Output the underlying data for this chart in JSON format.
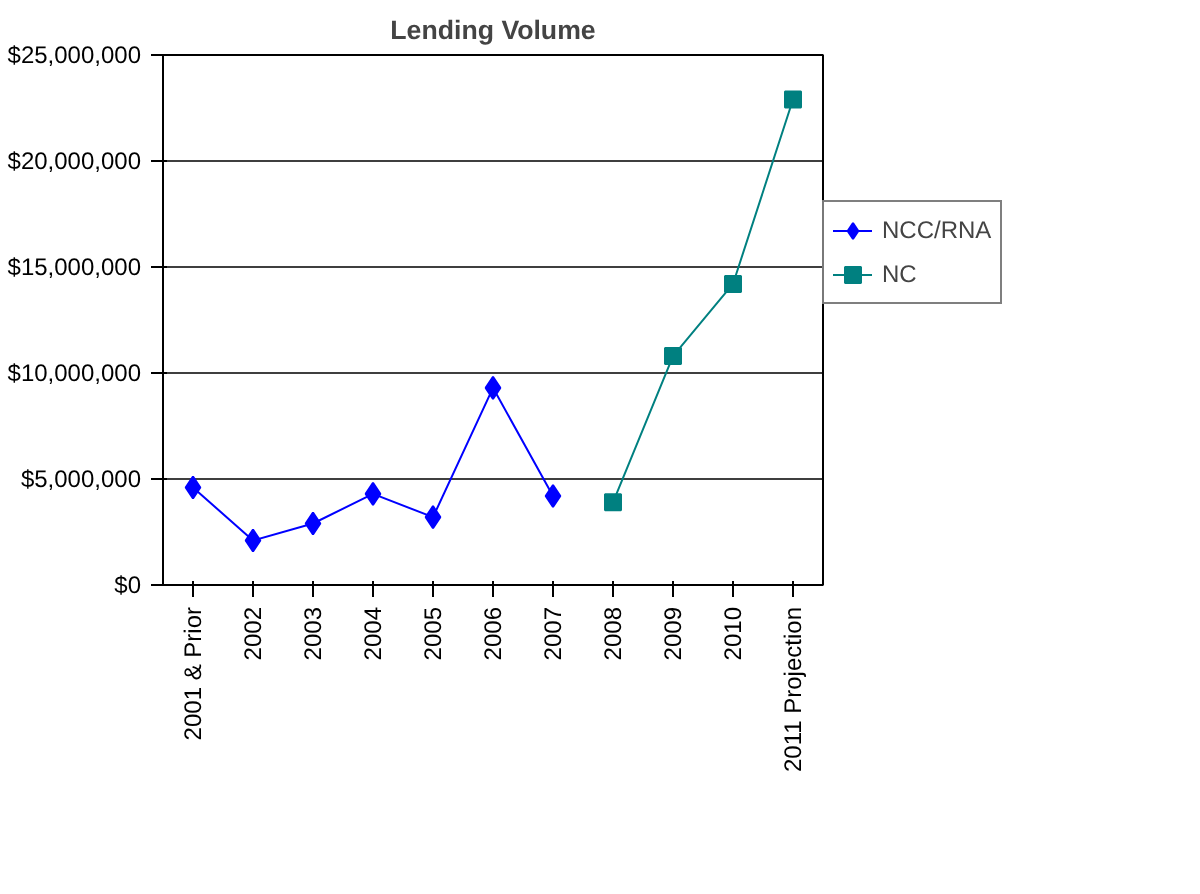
{
  "chart_data": {
    "type": "line",
    "title": "Lending Volume",
    "categories": [
      "2001 & Prior",
      "2002",
      "2003",
      "2004",
      "2005",
      "2006",
      "2007",
      "2008",
      "2009",
      "2010",
      "2011 Projection"
    ],
    "series": [
      {
        "name": "NCC/RNA",
        "color": "#0000ff",
        "marker": "diamond",
        "values": [
          4600000,
          2100000,
          2900000,
          4300000,
          3200000,
          9300000,
          4200000,
          null,
          null,
          null,
          null
        ]
      },
      {
        "name": "NC",
        "color": "#008080",
        "marker": "square",
        "values": [
          null,
          null,
          null,
          null,
          null,
          null,
          null,
          3900000,
          10800000,
          14200000,
          22900000
        ]
      }
    ],
    "ylim": [
      0,
      25000000
    ],
    "yticks": [
      {
        "value": 0,
        "label": "$0"
      },
      {
        "value": 5000000,
        "label": "$5,000,000"
      },
      {
        "value": 10000000,
        "label": "$10,000,000"
      },
      {
        "value": 15000000,
        "label": "$15,000,000"
      },
      {
        "value": 20000000,
        "label": "$20,000,000"
      },
      {
        "value": 25000000,
        "label": "$25,000,000"
      }
    ],
    "grid": "y",
    "legend": "right",
    "line_style": "solid"
  }
}
